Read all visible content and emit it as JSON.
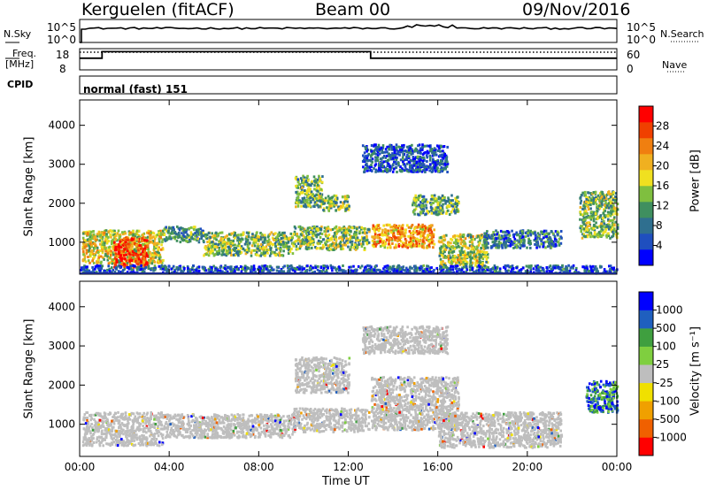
{
  "header": {
    "station": "Kerguelen (fitACF)",
    "beam": "Beam 00",
    "date": "09/Nov/2016"
  },
  "strip_panels": {
    "nsky_label": "N.Sky",
    "nsky_ticks": [
      "10^5",
      "10^0"
    ],
    "nsearch_label": "N.Search",
    "nsearch_ticks": [
      "10^5",
      "10^0"
    ],
    "freq_label_line1": "Freq.",
    "freq_label_line2": "[MHz]",
    "freq_ticks": [
      "18",
      "8"
    ],
    "nave_label": "Nave",
    "nave_ticks": [
      "60",
      "0"
    ],
    "cpid_label": "CPID",
    "cpid_value": "normal (fast) 151"
  },
  "colors": {
    "axis": "#000000",
    "ground_scatter": "#bebebe",
    "power_scale": [
      "#0000ff",
      "#1f4fbf",
      "#2f6f8f",
      "#3f8f5f",
      "#7fbf3f",
      "#f0e020",
      "#f0b020",
      "#f07f10",
      "#f04000",
      "#ff0000"
    ],
    "velocity_scale": [
      "#ff0000",
      "#f06000",
      "#f0a000",
      "#f0e000",
      "#bebebe",
      "#7fcf3f",
      "#3f9f3f",
      "#1f5fbf",
      "#0000ff"
    ]
  },
  "chart_data": [
    {
      "type": "heatmap",
      "title": "Power",
      "ylabel": "Slant Range [km]",
      "xlabel": "Time UT",
      "ylim": [
        180,
        4650
      ],
      "y_ticks": [
        "1000",
        "2000",
        "3000",
        "4000"
      ],
      "x_ticks": [
        "00:00",
        "04:00",
        "08:00",
        "12:00",
        "16:00",
        "20:00",
        "00:00"
      ],
      "colorbar_label": "Power [dB]",
      "colorbar_ticks": [
        "4",
        "8",
        "12",
        "16",
        "20",
        "24",
        "28"
      ],
      "colorbar_range": [
        0,
        32
      ],
      "regions": [
        {
          "t0": 0.1,
          "t1": 3.7,
          "r0": 450,
          "r1": 1300,
          "level": 18
        },
        {
          "t0": 1.5,
          "t1": 3.0,
          "r0": 350,
          "r1": 1100,
          "level": 28
        },
        {
          "t0": 3.7,
          "t1": 5.5,
          "r0": 1000,
          "r1": 1400,
          "level": 10
        },
        {
          "t0": 5.5,
          "t1": 9.5,
          "r0": 650,
          "r1": 1250,
          "level": 14
        },
        {
          "t0": 9.5,
          "t1": 12.9,
          "r0": 800,
          "r1": 1400,
          "level": 14
        },
        {
          "t0": 9.6,
          "t1": 10.8,
          "r0": 1900,
          "r1": 2700,
          "level": 13
        },
        {
          "t0": 10.8,
          "t1": 12.0,
          "r0": 1800,
          "r1": 2200,
          "level": 14
        },
        {
          "t0": 13.0,
          "t1": 15.8,
          "r0": 850,
          "r1": 1450,
          "level": 22
        },
        {
          "t0": 14.8,
          "t1": 16.9,
          "r0": 1700,
          "r1": 2200,
          "level": 12
        },
        {
          "t0": 12.6,
          "t1": 16.4,
          "r0": 2800,
          "r1": 3500,
          "level": 6
        },
        {
          "t0": 16.0,
          "t1": 18.2,
          "r0": 400,
          "r1": 1200,
          "level": 16
        },
        {
          "t0": 18.0,
          "t1": 21.5,
          "r0": 850,
          "r1": 1300,
          "level": 8
        },
        {
          "t0": 22.3,
          "t1": 24.0,
          "r0": 1100,
          "r1": 2300,
          "level": 14
        },
        {
          "t0": 0.0,
          "t1": 24.0,
          "r0": 200,
          "r1": 400,
          "level": 6
        }
      ]
    },
    {
      "type": "heatmap",
      "title": "Velocity",
      "ylabel": "Slant Range [km]",
      "xlabel": "Time UT",
      "ylim": [
        180,
        4650
      ],
      "y_ticks": [
        "1000",
        "2000",
        "3000",
        "4000"
      ],
      "x_ticks": [
        "00:00",
        "04:00",
        "08:00",
        "12:00",
        "16:00",
        "20:00",
        "00:00"
      ],
      "colorbar_label": "Velocity [m s⁻¹]",
      "colorbar_ticks": [
        "1000",
        "500",
        "100",
        "25",
        "-25",
        "-100",
        "-500",
        "-1000"
      ],
      "regions": [
        {
          "t0": 0.1,
          "t1": 3.7,
          "r0": 450,
          "r1": 1300,
          "level": 0
        },
        {
          "t0": 3.7,
          "t1": 9.5,
          "r0": 650,
          "r1": 1250,
          "level": 0
        },
        {
          "t0": 9.5,
          "t1": 12.9,
          "r0": 800,
          "r1": 1400,
          "level": 0
        },
        {
          "t0": 9.6,
          "t1": 12.0,
          "r0": 1800,
          "r1": 2700,
          "level": 0
        },
        {
          "t0": 13.0,
          "t1": 16.9,
          "r0": 850,
          "r1": 2200,
          "level": 0
        },
        {
          "t0": 12.6,
          "t1": 16.4,
          "r0": 2800,
          "r1": 3500,
          "level": 0
        },
        {
          "t0": 16.0,
          "t1": 21.5,
          "r0": 400,
          "r1": 1300,
          "level": 0
        },
        {
          "t0": 22.6,
          "t1": 24.0,
          "r0": 1300,
          "r1": 2100,
          "level": 600
        }
      ]
    }
  ],
  "time_series": {
    "freq_steps": [
      {
        "t0": 0.0,
        "t1": 1.0,
        "f": 13.5
      },
      {
        "t0": 1.0,
        "t1": 13.0,
        "f": 16.6
      },
      {
        "t0": 13.0,
        "t1": 24.0,
        "f": 13.5
      }
    ],
    "nave_dotted": 50
  }
}
